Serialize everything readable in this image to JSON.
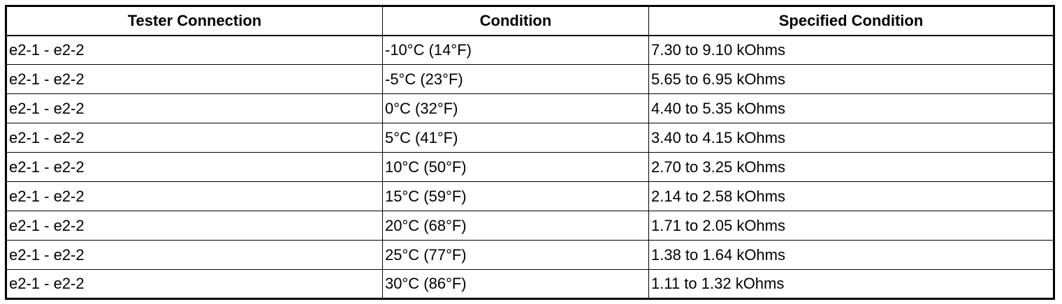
{
  "table": {
    "header": [
      "Tester Connection",
      "Condition",
      "Specified Condition"
    ],
    "rows": [
      [
        "e2-1 - e2-2",
        "-10°C (14°F)",
        "7.30 to 9.10 kOhms"
      ],
      [
        "e2-1 - e2-2",
        "-5°C (23°F)",
        "5.65 to 6.95 kOhms"
      ],
      [
        "e2-1 - e2-2",
        "0°C (32°F)",
        "4.40 to 5.35 kOhms"
      ],
      [
        "e2-1 - e2-2",
        "5°C (41°F)",
        "3.40 to 4.15 kOhms"
      ],
      [
        "e2-1 - e2-2",
        "10°C (50°F)",
        "2.70 to 3.25 kOhms"
      ],
      [
        "e2-1 - e2-2",
        "15°C (59°F)",
        "2.14 to 2.58 kOhms"
      ],
      [
        "e2-1 - e2-2",
        "20°C (68°F)",
        "1.71 to 2.05 kOhms"
      ],
      [
        "e2-1 - e2-2",
        "25°C (77°F)",
        "1.38 to 1.64 kOhms"
      ],
      [
        "e2-1 - e2-2",
        "30°C (86°F)",
        "1.11 to 1.32 kOhms"
      ]
    ]
  }
}
